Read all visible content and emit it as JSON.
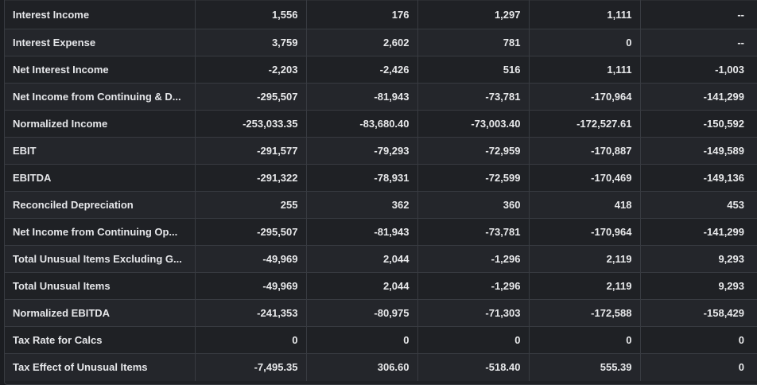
{
  "rows": [
    {
      "label": "Interest Income",
      "values": [
        "1,556",
        "176",
        "1,297",
        "1,111",
        "--"
      ]
    },
    {
      "label": "Interest Expense",
      "values": [
        "3,759",
        "2,602",
        "781",
        "0",
        "--"
      ]
    },
    {
      "label": "Net Interest Income",
      "values": [
        "-2,203",
        "-2,426",
        "516",
        "1,111",
        "-1,003"
      ]
    },
    {
      "label": "Net Income from Continuing & D...",
      "values": [
        "-295,507",
        "-81,943",
        "-73,781",
        "-170,964",
        "-141,299"
      ]
    },
    {
      "label": "Normalized Income",
      "values": [
        "-253,033.35",
        "-83,680.40",
        "-73,003.40",
        "-172,527.61",
        "-150,592"
      ]
    },
    {
      "label": "EBIT",
      "values": [
        "-291,577",
        "-79,293",
        "-72,959",
        "-170,887",
        "-149,589"
      ]
    },
    {
      "label": "EBITDA",
      "values": [
        "-291,322",
        "-78,931",
        "-72,599",
        "-170,469",
        "-149,136"
      ]
    },
    {
      "label": "Reconciled Depreciation",
      "values": [
        "255",
        "362",
        "360",
        "418",
        "453"
      ]
    },
    {
      "label": "Net Income from Continuing Op...",
      "values": [
        "-295,507",
        "-81,943",
        "-73,781",
        "-170,964",
        "-141,299"
      ]
    },
    {
      "label": "Total Unusual Items Excluding G...",
      "values": [
        "-49,969",
        "2,044",
        "-1,296",
        "2,119",
        "9,293"
      ]
    },
    {
      "label": "Total Unusual Items",
      "values": [
        "-49,969",
        "2,044",
        "-1,296",
        "2,119",
        "9,293"
      ]
    },
    {
      "label": "Normalized EBITDA",
      "values": [
        "-241,353",
        "-80,975",
        "-71,303",
        "-172,588",
        "-158,429"
      ]
    },
    {
      "label": "Tax Rate for Calcs",
      "values": [
        "0",
        "0",
        "0",
        "0",
        "0"
      ]
    },
    {
      "label": "Tax Effect of Unusual Items",
      "values": [
        "-7,495.35",
        "306.60",
        "-518.40",
        "555.39",
        "0"
      ]
    }
  ]
}
